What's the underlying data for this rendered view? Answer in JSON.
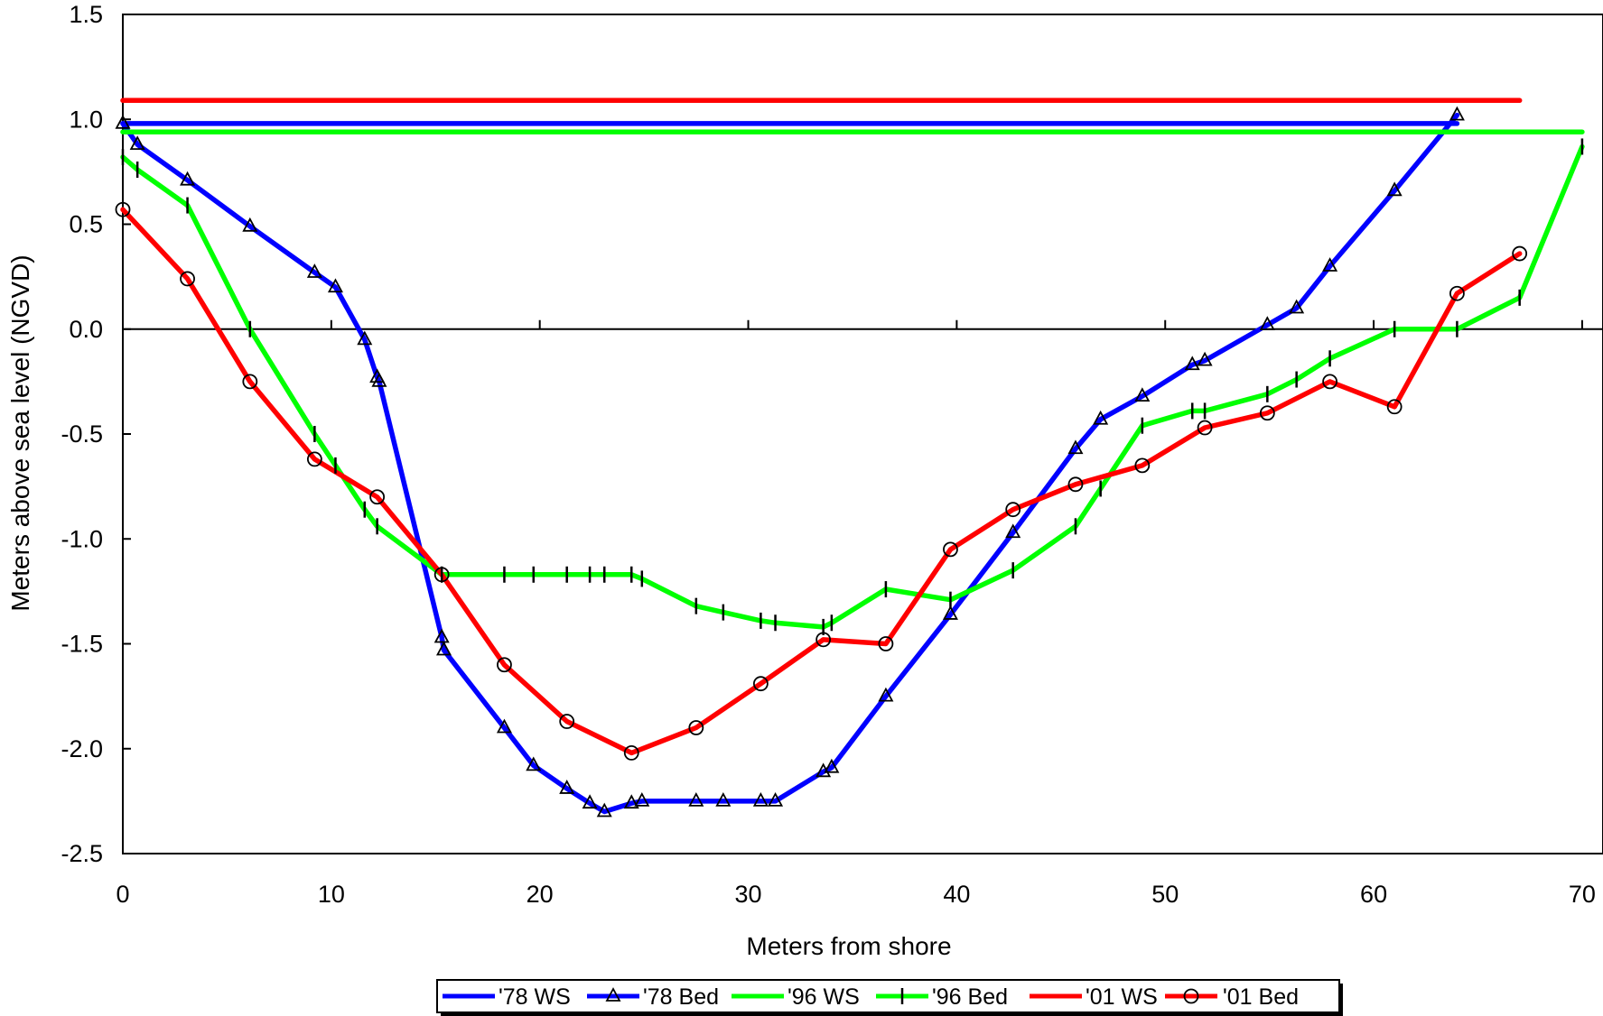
{
  "chart_data": {
    "type": "line",
    "xlabel": "Meters from shore",
    "ylabel": "Meters above sea level (NGVD)",
    "xlim": [
      0,
      71
    ],
    "ylim": [
      -2.5,
      1.5
    ],
    "xticks": [
      0,
      10,
      20,
      30,
      40,
      50,
      60,
      70
    ],
    "xtick_labels": [
      "0",
      "10",
      "20",
      "30",
      "40",
      "50",
      "60",
      "70"
    ],
    "yticks": [
      1.5,
      1.0,
      0.5,
      0.0,
      -0.5,
      -1.0,
      -1.5,
      -2.0,
      -2.5
    ],
    "ytick_labels": [
      "1.5",
      "1.0",
      "0.5",
      "0.0",
      "-0.5",
      "-1.0",
      "-1.5",
      "-2.0",
      "-2.5"
    ],
    "zero_line": true,
    "grid": false,
    "legend_position": "bottom",
    "series": [
      {
        "name": "'78 WS",
        "color": "#0000ff",
        "marker": "none",
        "x": [
          0,
          64
        ],
        "y": [
          0.98,
          0.98
        ]
      },
      {
        "name": "'78 Bed",
        "color": "#0000ff",
        "marker": "triangle",
        "x": [
          0,
          0.7,
          3.1,
          6.1,
          9.2,
          10.2,
          11.6,
          12.2,
          12.3,
          15.3,
          15.4,
          18.3,
          19.7,
          21.3,
          22.4,
          23.1,
          24.4,
          24.9,
          27.5,
          28.8,
          30.6,
          31.3,
          33.6,
          34.0,
          36.6,
          39.7,
          42.7,
          45.7,
          46.9,
          48.9,
          51.3,
          51.9,
          54.9,
          56.3,
          57.9,
          61.0,
          64.0
        ],
        "y": [
          0.98,
          0.88,
          0.71,
          0.49,
          0.27,
          0.2,
          -0.05,
          -0.23,
          -0.25,
          -1.47,
          -1.53,
          -1.9,
          -2.08,
          -2.19,
          -2.26,
          -2.3,
          -2.26,
          -2.25,
          -2.25,
          -2.25,
          -2.25,
          -2.25,
          -2.11,
          -2.09,
          -1.75,
          -1.36,
          -0.97,
          -0.57,
          -0.43,
          -0.32,
          -0.17,
          -0.15,
          0.02,
          0.1,
          0.3,
          0.66,
          1.02
        ]
      },
      {
        "name": "'96 WS",
        "color": "#00ff00",
        "marker": "none",
        "x": [
          0,
          70
        ],
        "y": [
          0.94,
          0.94
        ]
      },
      {
        "name": "'96 Bed",
        "color": "#00ff00",
        "marker": "vbar",
        "x": [
          0,
          0.7,
          3.1,
          6.1,
          9.2,
          10.2,
          11.6,
          12.2,
          15.3,
          18.3,
          19.7,
          21.3,
          22.4,
          23.1,
          24.4,
          24.9,
          27.5,
          28.8,
          30.6,
          31.3,
          33.6,
          34.0,
          36.6,
          39.7,
          42.7,
          45.7,
          46.9,
          48.9,
          51.3,
          51.9,
          54.9,
          56.3,
          57.9,
          61.0,
          64.0,
          67.0,
          70.0
        ],
        "y": [
          0.82,
          0.76,
          0.59,
          0.0,
          -0.5,
          -0.65,
          -0.86,
          -0.94,
          -1.17,
          -1.17,
          -1.17,
          -1.17,
          -1.17,
          -1.17,
          -1.17,
          -1.19,
          -1.32,
          -1.35,
          -1.39,
          -1.4,
          -1.42,
          -1.4,
          -1.24,
          -1.29,
          -1.15,
          -0.94,
          -0.76,
          -0.46,
          -0.39,
          -0.39,
          -0.31,
          -0.24,
          -0.14,
          0.0,
          0.0,
          0.15,
          0.87
        ]
      },
      {
        "name": "'01 WS",
        "color": "#ff0000",
        "marker": "none",
        "x": [
          0,
          67
        ],
        "y": [
          1.09,
          1.09
        ]
      },
      {
        "name": "'01 Bed",
        "color": "#ff0000",
        "marker": "circle",
        "x": [
          0,
          3.1,
          6.1,
          9.2,
          12.2,
          15.3,
          18.3,
          21.3,
          24.4,
          27.5,
          30.6,
          33.6,
          36.6,
          39.7,
          42.7,
          45.7,
          48.9,
          51.9,
          54.9,
          57.9,
          61.0,
          64.0,
          67.0
        ],
        "y": [
          0.57,
          0.24,
          -0.25,
          -0.62,
          -0.8,
          -1.17,
          -1.6,
          -1.87,
          -2.02,
          -1.9,
          -1.69,
          -1.48,
          -1.5,
          -1.05,
          -0.86,
          -0.74,
          -0.65,
          -0.47,
          -0.4,
          -0.25,
          -0.37,
          0.17,
          0.36
        ]
      }
    ]
  }
}
